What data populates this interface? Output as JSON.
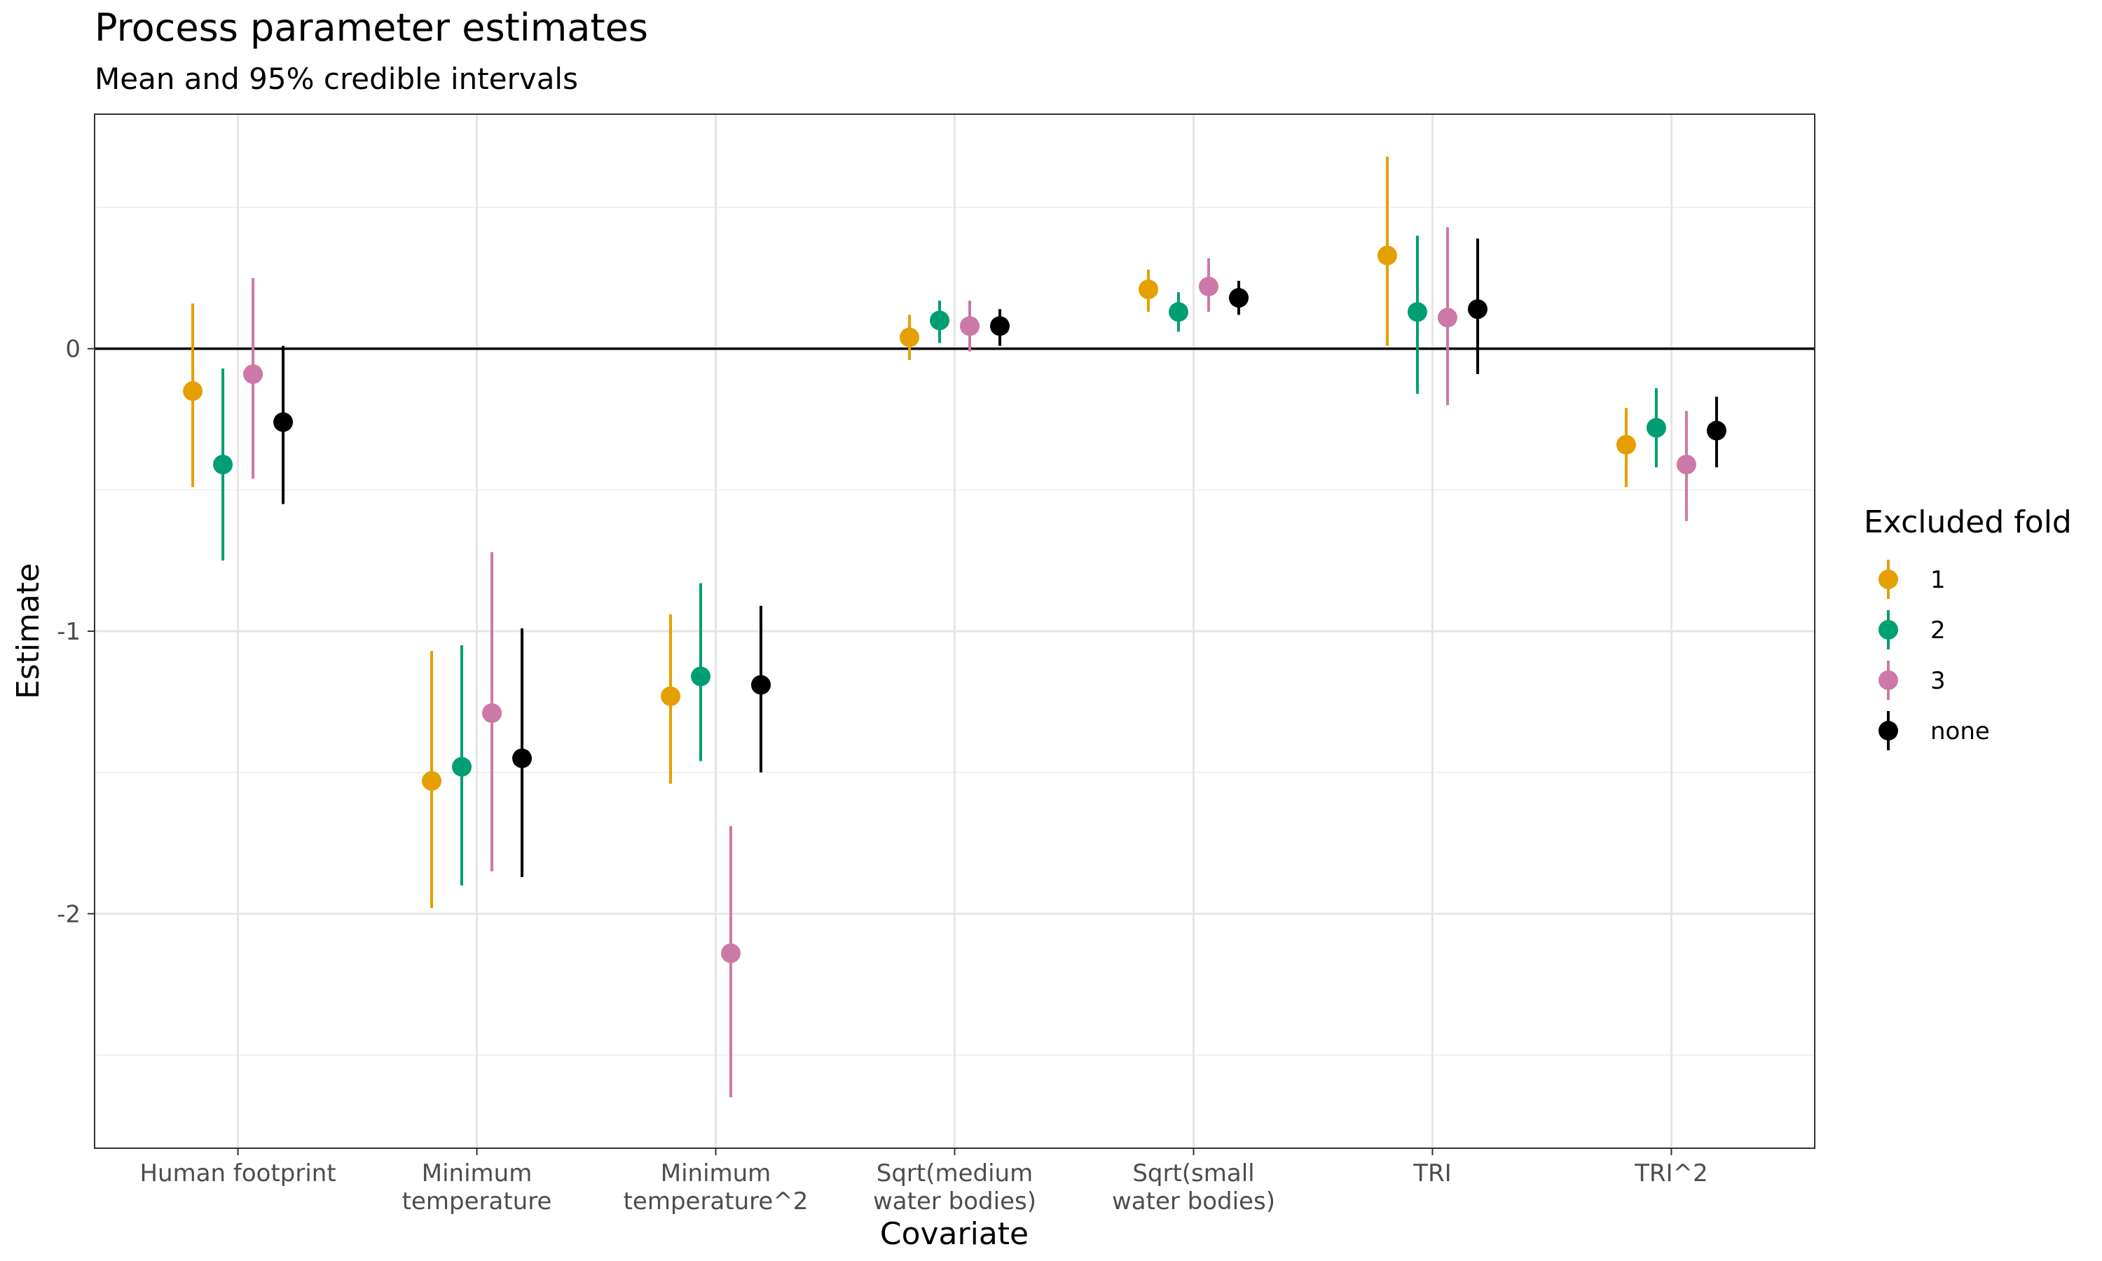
{
  "chart_data": {
    "type": "errorbar",
    "title": "Process parameter estimates",
    "subtitle": "Mean and 95% credible intervals",
    "xlabel": "Covariate",
    "ylabel": "Estimate",
    "ylim": [
      -2.83,
      0.83
    ],
    "yticks": [
      {
        "value": 0,
        "label": "0"
      },
      {
        "value": -1,
        "label": "-1"
      },
      {
        "value": -2,
        "label": "-2"
      }
    ],
    "grid": true,
    "legend": {
      "title": "Excluded fold",
      "position": "right"
    },
    "categories": [
      {
        "lines": [
          "Human footprint"
        ]
      },
      {
        "lines": [
          "Minimum",
          "temperature"
        ]
      },
      {
        "lines": [
          "Minimum",
          "temperature^2"
        ]
      },
      {
        "lines": [
          "Sqrt(medium",
          "water bodies)"
        ]
      },
      {
        "lines": [
          "Sqrt(small",
          "water bodies)"
        ]
      },
      {
        "lines": [
          "TRI"
        ]
      },
      {
        "lines": [
          "TRI^2"
        ]
      }
    ],
    "series": [
      {
        "name": "1",
        "color": "#E69F00",
        "mean": [
          -0.15,
          -1.53,
          -1.23,
          0.04,
          0.21,
          0.33,
          -0.34
        ],
        "lower": [
          -0.49,
          -1.98,
          -1.54,
          -0.04,
          0.13,
          0.01,
          -0.49
        ],
        "upper": [
          0.16,
          -1.07,
          -0.94,
          0.12,
          0.28,
          0.68,
          -0.21
        ]
      },
      {
        "name": "2",
        "color": "#009E73",
        "mean": [
          -0.41,
          -1.48,
          -1.16,
          0.1,
          0.13,
          0.13,
          -0.28
        ],
        "lower": [
          -0.75,
          -1.9,
          -1.46,
          0.02,
          0.06,
          -0.16,
          -0.42
        ],
        "upper": [
          -0.07,
          -1.05,
          -0.83,
          0.17,
          0.2,
          0.4,
          -0.14
        ]
      },
      {
        "name": "3",
        "color": "#CC79A7",
        "mean": [
          -0.09,
          -1.29,
          -2.14,
          0.08,
          0.22,
          0.11,
          -0.41
        ],
        "lower": [
          -0.46,
          -1.85,
          -2.65,
          -0.01,
          0.13,
          -0.2,
          -0.61
        ],
        "upper": [
          0.25,
          -0.72,
          -1.69,
          0.17,
          0.32,
          0.43,
          -0.22
        ]
      },
      {
        "name": "none",
        "color": "#000000",
        "mean": [
          -0.26,
          -1.45,
          -1.19,
          0.08,
          0.18,
          0.14,
          -0.29
        ],
        "lower": [
          -0.55,
          -1.87,
          -1.5,
          0.01,
          0.12,
          -0.09,
          -0.42
        ],
        "upper": [
          0.01,
          -0.99,
          -0.91,
          0.14,
          0.24,
          0.39,
          -0.17
        ]
      }
    ]
  }
}
